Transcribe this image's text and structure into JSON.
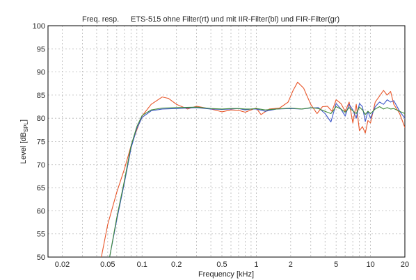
{
  "chart_data": {
    "type": "line",
    "title_left": "Freq. resp.",
    "title": "ETS-515 ohne Filter(rt) und mit IIR-Filter(bl) und FIR-Filter(gr)",
    "xlabel": "Frequency [kHz]",
    "ylabel_main": "Level [dB",
    "ylabel_sub": "SPL",
    "ylabel_end": "]",
    "x_scale": "log",
    "xlim": [
      0.015,
      20
    ],
    "ylim": [
      50,
      100
    ],
    "grid": true,
    "x_ticks": [
      {
        "value": 0.02,
        "label": "0.02"
      },
      {
        "value": 0.05,
        "label": "0.05"
      },
      {
        "value": 0.1,
        "label": "0.1"
      },
      {
        "value": 0.2,
        "label": "0.2"
      },
      {
        "value": 0.5,
        "label": "0.5"
      },
      {
        "value": 1,
        "label": "1"
      },
      {
        "value": 2,
        "label": "2"
      },
      {
        "value": 5,
        "label": "5"
      },
      {
        "value": 10,
        "label": "10"
      },
      {
        "value": 20,
        "label": "20"
      }
    ],
    "y_ticks": [
      50,
      55,
      60,
      65,
      70,
      75,
      80,
      85,
      90,
      95,
      100
    ],
    "series": [
      {
        "color": "#e8562a",
        "x": [
          0.044,
          0.05,
          0.06,
          0.07,
          0.08,
          0.09,
          0.1,
          0.12,
          0.15,
          0.17,
          0.2,
          0.25,
          0.3,
          0.4,
          0.5,
          0.6,
          0.7,
          0.8,
          0.9,
          1.0,
          1.1,
          1.3,
          1.6,
          1.9,
          2.1,
          2.3,
          2.6,
          3.0,
          3.4,
          3.8,
          4.2,
          4.6,
          5.0,
          5.5,
          6.0,
          6.5,
          7.0,
          7.5,
          8.0,
          8.5,
          9.0,
          9.5,
          10,
          11,
          12,
          13,
          14,
          15,
          16,
          18,
          20
        ],
        "y": [
          50,
          57,
          64,
          69,
          74,
          77.5,
          80.5,
          83,
          84.6,
          84.3,
          83,
          82,
          82.6,
          82,
          81.4,
          81.8,
          81.7,
          81.3,
          81.8,
          82.2,
          80.8,
          82.0,
          82.2,
          83.5,
          86.0,
          87.8,
          86.5,
          83.0,
          81.0,
          82.5,
          82.6,
          81.5,
          84.0,
          83.2,
          81.5,
          83.5,
          79.0,
          83.0,
          77.3,
          78.2,
          76.8,
          79.5,
          79.0,
          83.5,
          84.8,
          86.0,
          85.0,
          85.8,
          83.0,
          81.0,
          78.0
        ]
      },
      {
        "color": "#3b55c8",
        "x": [
          0.052,
          0.06,
          0.07,
          0.08,
          0.09,
          0.1,
          0.12,
          0.15,
          0.2,
          0.3,
          0.4,
          0.5,
          0.6,
          0.7,
          0.8,
          0.9,
          1.0,
          1.2,
          1.5,
          2.0,
          2.5,
          3.0,
          3.5,
          4.0,
          4.5,
          5.0,
          5.5,
          6.0,
          6.5,
          7.0,
          7.5,
          8.0,
          8.5,
          9.0,
          9.5,
          10,
          11,
          12,
          13,
          14,
          15,
          16,
          18,
          20
        ],
        "y": [
          50,
          58,
          66,
          73.5,
          77.8,
          80.2,
          81.6,
          82.0,
          82.1,
          82.3,
          82.0,
          81.9,
          82.0,
          82.1,
          81.8,
          82.0,
          82.0,
          81.5,
          82.0,
          82.1,
          82.0,
          82.2,
          82.3,
          81.0,
          79.2,
          83.2,
          82.0,
          80.5,
          83.0,
          81.8,
          80.0,
          83.2,
          82.5,
          79.3,
          81.5,
          80.0,
          82.5,
          83.5,
          83.0,
          84.0,
          83.5,
          83.8,
          81.5,
          80.0
        ]
      },
      {
        "color": "#3f8a3a",
        "x": [
          0.052,
          0.06,
          0.07,
          0.08,
          0.09,
          0.1,
          0.12,
          0.15,
          0.2,
          0.3,
          0.4,
          0.5,
          0.6,
          0.7,
          0.8,
          0.9,
          1.0,
          1.2,
          1.5,
          2.0,
          2.5,
          3.0,
          3.5,
          4.0,
          4.5,
          5.0,
          5.5,
          6.0,
          6.5,
          7.0,
          7.5,
          8.0,
          8.5,
          9.0,
          9.5,
          10,
          11,
          12,
          13,
          14,
          15,
          16,
          18,
          20
        ],
        "y": [
          50,
          58.5,
          66.5,
          74,
          78.2,
          80.6,
          81.8,
          82.2,
          82.3,
          82.4,
          82.1,
          82.0,
          82.1,
          82.1,
          82.0,
          82.0,
          82.1,
          81.8,
          82.0,
          82.2,
          82.0,
          82.3,
          82.1,
          81.5,
          81.0,
          82.5,
          82.0,
          81.3,
          82.3,
          81.6,
          81.0,
          82.4,
          81.8,
          80.8,
          81.5,
          81.0,
          82.0,
          82.5,
          82.0,
          82.3,
          82.0,
          82.1,
          81.5,
          81.0
        ]
      }
    ]
  }
}
